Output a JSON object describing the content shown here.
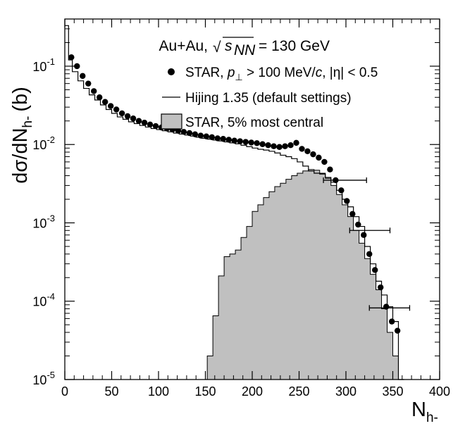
{
  "chart_data": {
    "type": "scatter",
    "title": "",
    "xlabel": "N",
    "xlabel_sub": "h-",
    "ylabel": "dσ/dN",
    "ylabel_sub": "h-",
    "ylabel_unit": "(b)",
    "xlim": [
      0,
      400
    ],
    "ylim": [
      1e-05,
      0.4
    ],
    "yscale": "log",
    "grid": false,
    "x_ticks": [
      "0",
      "50",
      "100",
      "150",
      "200",
      "250",
      "300",
      "350",
      "400"
    ],
    "y_ticks": [
      {
        "base": "10",
        "exp": "-5",
        "value": 1e-05
      },
      {
        "base": "10",
        "exp": "-4",
        "value": 0.0001
      },
      {
        "base": "10",
        "exp": "-3",
        "value": 0.001
      },
      {
        "base": "10",
        "exp": "-2",
        "value": 0.01
      },
      {
        "base": "10",
        "exp": "-1",
        "value": 0.1
      }
    ],
    "annotation": {
      "system": "Au+Au,",
      "sqrt_symbol": "√",
      "s_var": "s",
      "s_sub": "NN",
      "energy": "= 130 GeV"
    },
    "legend": {
      "placement": "top-right",
      "entries": [
        {
          "text": "STAR, p⊥ > 100 MeV/c, |η| < 0.5"
        },
        {
          "text": "Hijing 1.35 (default settings)"
        },
        {
          "text": "STAR, 5% most central"
        }
      ]
    },
    "series": [
      {
        "name": "STAR, p⊥ > 100 MeV/c, |η| < 0.5",
        "style": "points",
        "color": "#000000",
        "x": [
          7,
          13,
          19,
          25,
          31,
          37,
          43,
          49,
          55,
          61,
          67,
          73,
          79,
          85,
          91,
          97,
          103,
          109,
          115,
          121,
          127,
          133,
          139,
          145,
          151,
          157,
          163,
          169,
          175,
          181,
          187,
          193,
          199,
          205,
          211,
          217,
          223,
          229,
          235,
          241,
          247,
          253,
          259,
          265,
          271,
          277,
          283,
          289,
          295,
          301,
          307,
          313,
          319,
          325,
          331,
          337,
          343,
          349,
          355
        ],
        "y": [
          0.13,
          0.1,
          0.075,
          0.06,
          0.048,
          0.04,
          0.035,
          0.031,
          0.028,
          0.025,
          0.023,
          0.0215,
          0.02,
          0.019,
          0.018,
          0.0172,
          0.0165,
          0.016,
          0.0155,
          0.015,
          0.0145,
          0.014,
          0.0135,
          0.013,
          0.0127,
          0.0124,
          0.012,
          0.0118,
          0.0115,
          0.0112,
          0.011,
          0.0108,
          0.0106,
          0.0104,
          0.0101,
          0.0098,
          0.0095,
          0.0093,
          0.0095,
          0.0098,
          0.0105,
          0.0088,
          0.0082,
          0.0075,
          0.0068,
          0.006,
          0.0048,
          0.0035,
          0.0026,
          0.0019,
          0.0013,
          0.00095,
          0.0007,
          0.0004,
          0.00025,
          0.00015,
          8.5e-05,
          5.5e-05,
          4.2e-05
        ]
      },
      {
        "name": "Hijing 1.35 (default settings)",
        "style": "step",
        "color": "#000000",
        "edges": [
          0,
          4,
          8,
          14,
          20,
          26,
          32,
          38,
          44,
          50,
          56,
          62,
          68,
          74,
          80,
          86,
          92,
          98,
          104,
          110,
          116,
          122,
          128,
          134,
          140,
          146,
          152,
          158,
          164,
          170,
          176,
          182,
          188,
          194,
          200,
          206,
          212,
          218,
          224,
          230,
          236,
          242,
          248,
          254,
          260,
          266,
          272,
          278,
          284,
          290,
          296,
          302,
          308,
          314,
          320,
          326,
          332,
          338,
          344,
          350,
          356,
          362
        ],
        "y": [
          0.33,
          0.12,
          0.085,
          0.065,
          0.052,
          0.043,
          0.037,
          0.032,
          0.028,
          0.025,
          0.0225,
          0.021,
          0.0195,
          0.0185,
          0.0175,
          0.0167,
          0.016,
          0.0155,
          0.015,
          0.0145,
          0.014,
          0.0136,
          0.0132,
          0.0128,
          0.0124,
          0.012,
          0.0117,
          0.0114,
          0.0111,
          0.0108,
          0.0105,
          0.0102,
          0.0098,
          0.0094,
          0.009,
          0.0087,
          0.0085,
          0.0082,
          0.0078,
          0.0073,
          0.007,
          0.0066,
          0.006,
          0.0053,
          0.0046,
          0.0043,
          0.0042,
          0.0038,
          0.0033,
          0.0026,
          0.002,
          0.0016,
          0.0012,
          0.0009,
          0.0005,
          0.0003,
          0.00018,
          0.00012,
          8.5e-05,
          5.5e-05,
          1e-05
        ]
      },
      {
        "name": "STAR, 5% most central",
        "style": "filled-step",
        "color": "#c0c0c0",
        "edges": [
          152,
          158,
          164,
          170,
          176,
          182,
          188,
          194,
          200,
          206,
          212,
          218,
          224,
          230,
          236,
          242,
          248,
          254,
          260,
          266,
          272,
          278,
          284,
          290,
          296,
          302,
          308,
          314,
          320,
          326,
          332,
          338,
          344,
          350,
          356
        ],
        "y": [
          2e-05,
          6.5e-05,
          0.00021,
          0.00037,
          0.0004,
          0.00045,
          0.00065,
          0.0009,
          0.0014,
          0.0017,
          0.0021,
          0.0025,
          0.0029,
          0.0032,
          0.0036,
          0.004,
          0.0043,
          0.0046,
          0.0048,
          0.0047,
          0.0043,
          0.0037,
          0.003,
          0.0023,
          0.0017,
          0.0012,
          0.0008,
          0.00055,
          0.00035,
          0.00022,
          0.00014,
          8e-05,
          4e-05,
          2e-05
        ]
      }
    ],
    "error_bars": [
      {
        "x": 295,
        "y": 0.0035,
        "x_lo": 276,
        "x_hi": 322
      },
      {
        "x": 324,
        "y": 0.0008,
        "x_lo": 304,
        "x_hi": 347
      },
      {
        "x": 345,
        "y": 8.2e-05,
        "x_lo": 325,
        "x_hi": 368
      }
    ]
  }
}
